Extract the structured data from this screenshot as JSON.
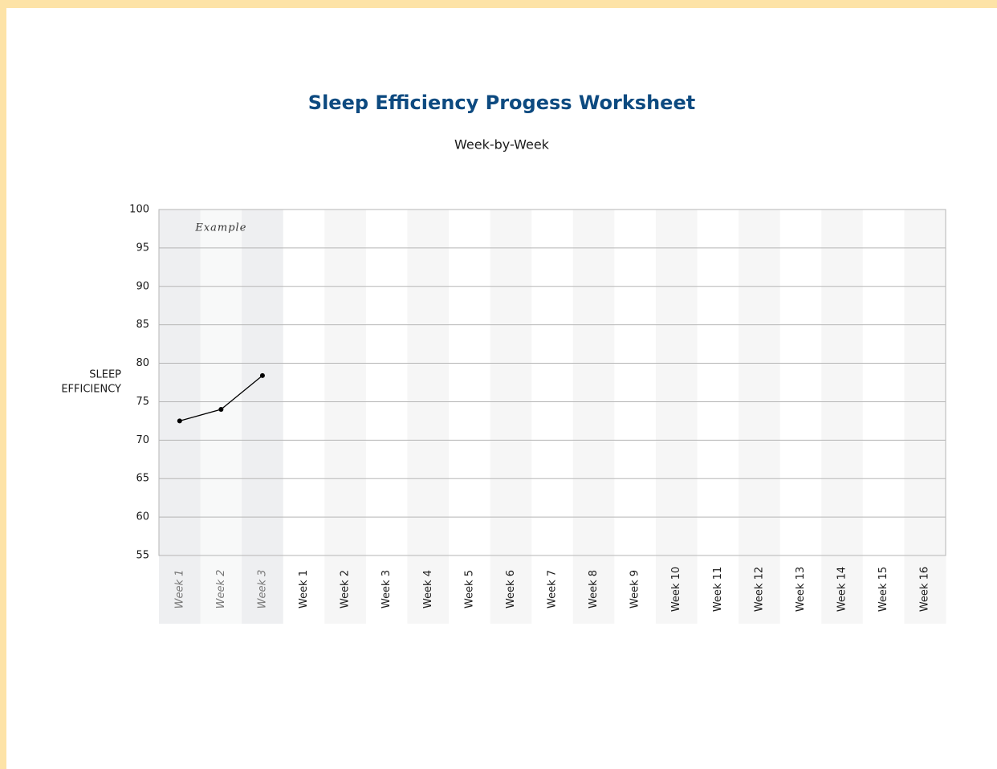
{
  "chart_data": {
    "type": "line",
    "title": "Sleep Efficiency Progess Worksheet",
    "subtitle": "Week-by-Week",
    "ylabel": [
      "SLEEP",
      "EFFICIENCY"
    ],
    "example": {
      "label": "Example",
      "categories": [
        "Week 1",
        "Week 2",
        "Week 3"
      ],
      "values": [
        72.5,
        74,
        78.4
      ],
      "color": "#000000"
    },
    "categories": [
      "Week 1",
      "Week 2",
      "Week 3",
      "Week 4",
      "Week 5",
      "Week 6",
      "Week 7",
      "Week 8",
      "Week 9",
      "Week 10",
      "Week 11",
      "Week 12",
      "Week 13",
      "Week 14",
      "Week 15",
      "Week 16"
    ],
    "ylim": [
      55,
      100
    ],
    "yticks": [
      55,
      60,
      65,
      70,
      75,
      80,
      85,
      90,
      95,
      100
    ],
    "grid": true
  }
}
